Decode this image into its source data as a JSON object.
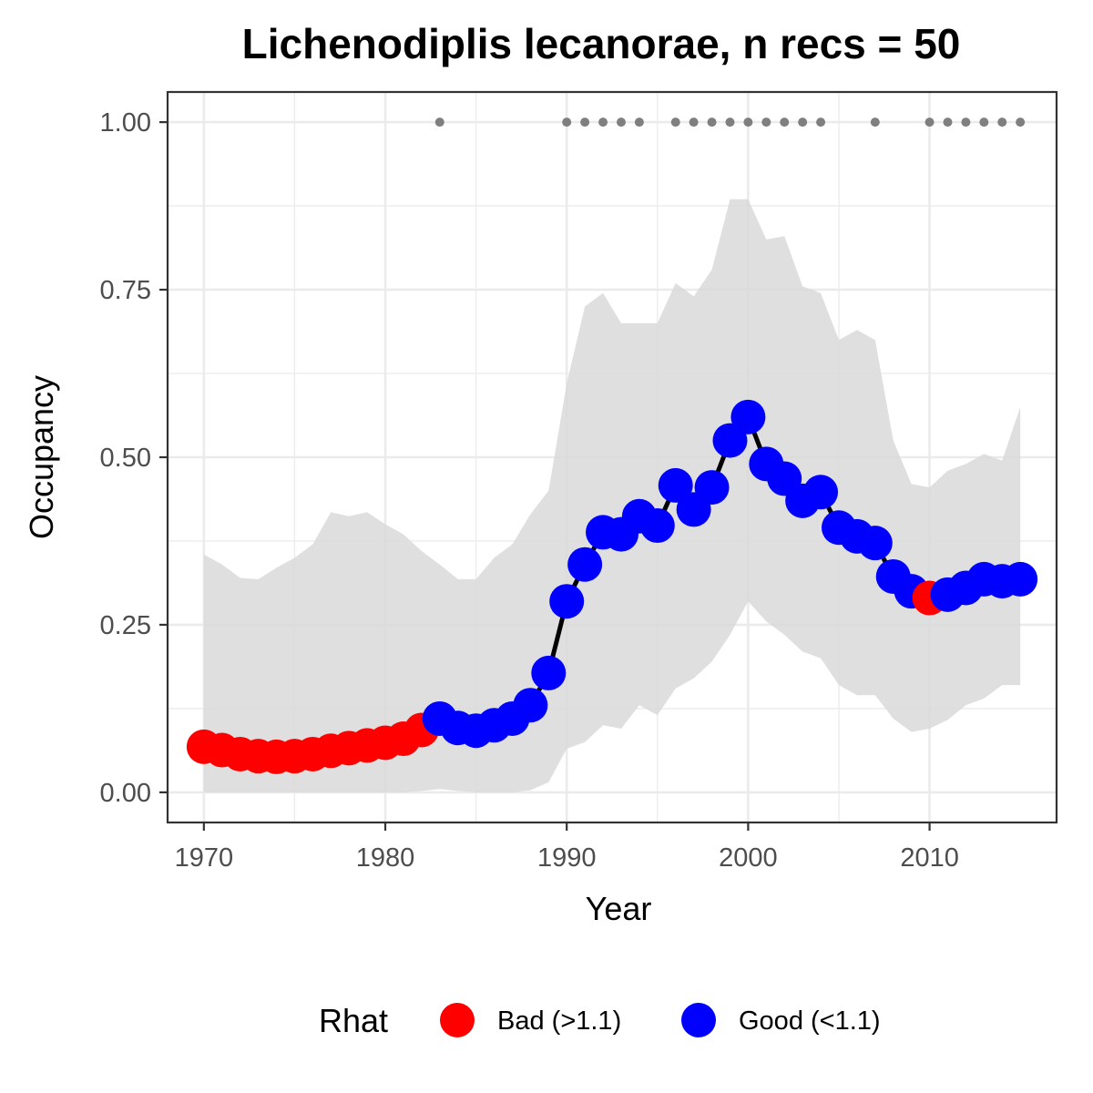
{
  "chart_data": {
    "type": "line",
    "title": "Lichenodiplis lecanorae, n recs = 50",
    "xlabel": "Year",
    "ylabel": "Occupancy",
    "xlim": [
      1968,
      2017
    ],
    "ylim": [
      -0.045,
      1.045
    ],
    "x_ticks": [
      "1970",
      "1980",
      "1990",
      "2000",
      "2010"
    ],
    "y_ticks": [
      "0.00",
      "0.25",
      "0.50",
      "0.75",
      "1.00"
    ],
    "grid": true,
    "legend": {
      "title": "Rhat",
      "position": "bottom",
      "entries": [
        {
          "key": "bad",
          "label": "Bad (>1.1)",
          "color": "#ff0000"
        },
        {
          "key": "good",
          "label": "Good (<1.1)",
          "color": "#0000ff"
        }
      ]
    },
    "colors": {
      "bad": "#ff0000",
      "good": "#0000ff",
      "ribbon": "#d9d9d9",
      "line": "#000000",
      "records": "#7f7f7f"
    },
    "x": [
      1970,
      1971,
      1972,
      1973,
      1974,
      1975,
      1976,
      1977,
      1978,
      1979,
      1980,
      1981,
      1982,
      1983,
      1984,
      1985,
      1986,
      1987,
      1988,
      1989,
      1990,
      1991,
      1992,
      1993,
      1994,
      1995,
      1996,
      1997,
      1998,
      1999,
      2000,
      2001,
      2002,
      2003,
      2004,
      2005,
      2006,
      2007,
      2008,
      2009,
      2010,
      2011,
      2012,
      2013,
      2014,
      2015
    ],
    "occupancy": [
      0.068,
      0.063,
      0.057,
      0.054,
      0.053,
      0.054,
      0.057,
      0.062,
      0.066,
      0.07,
      0.074,
      0.08,
      0.093,
      0.11,
      0.096,
      0.092,
      0.1,
      0.11,
      0.13,
      0.178,
      0.285,
      0.34,
      0.388,
      0.385,
      0.412,
      0.398,
      0.458,
      0.422,
      0.455,
      0.525,
      0.56,
      0.49,
      0.468,
      0.435,
      0.448,
      0.395,
      0.382,
      0.372,
      0.322,
      0.3,
      0.29,
      0.295,
      0.305,
      0.318,
      0.315,
      0.318
    ],
    "lower": [
      0.0,
      0.0,
      0.0,
      0.0,
      0.0,
      0.0,
      0.0,
      0.0,
      0.0,
      0.0,
      0.0,
      0.0,
      0.002,
      0.005,
      0.002,
      0.0,
      0.0,
      0.0,
      0.003,
      0.015,
      0.065,
      0.075,
      0.1,
      0.095,
      0.13,
      0.115,
      0.155,
      0.17,
      0.195,
      0.235,
      0.285,
      0.255,
      0.235,
      0.21,
      0.2,
      0.16,
      0.145,
      0.145,
      0.11,
      0.09,
      0.095,
      0.108,
      0.13,
      0.14,
      0.16,
      0.16
    ],
    "upper": [
      0.355,
      0.34,
      0.32,
      0.318,
      0.335,
      0.35,
      0.37,
      0.418,
      0.412,
      0.418,
      0.4,
      0.385,
      0.36,
      0.34,
      0.318,
      0.318,
      0.35,
      0.37,
      0.415,
      0.45,
      0.61,
      0.725,
      0.745,
      0.7,
      0.7,
      0.7,
      0.76,
      0.74,
      0.78,
      0.885,
      0.885,
      0.825,
      0.83,
      0.755,
      0.745,
      0.675,
      0.69,
      0.675,
      0.525,
      0.46,
      0.455,
      0.48,
      0.49,
      0.505,
      0.495,
      0.575
    ],
    "rhat_status": [
      "bad",
      "bad",
      "bad",
      "bad",
      "bad",
      "bad",
      "bad",
      "bad",
      "bad",
      "bad",
      "bad",
      "bad",
      "bad",
      "good",
      "good",
      "good",
      "good",
      "good",
      "good",
      "good",
      "good",
      "good",
      "good",
      "good",
      "good",
      "good",
      "good",
      "good",
      "good",
      "good",
      "good",
      "good",
      "good",
      "good",
      "good",
      "good",
      "good",
      "good",
      "good",
      "good",
      "bad",
      "good",
      "good",
      "good",
      "good",
      "good"
    ],
    "record_years": [
      1983,
      1990,
      1991,
      1992,
      1993,
      1994,
      1996,
      1997,
      1998,
      1999,
      2000,
      2001,
      2002,
      2003,
      2004,
      2007,
      2010,
      2011,
      2012,
      2013,
      2014,
      2015
    ],
    "record_value": 1.0
  }
}
